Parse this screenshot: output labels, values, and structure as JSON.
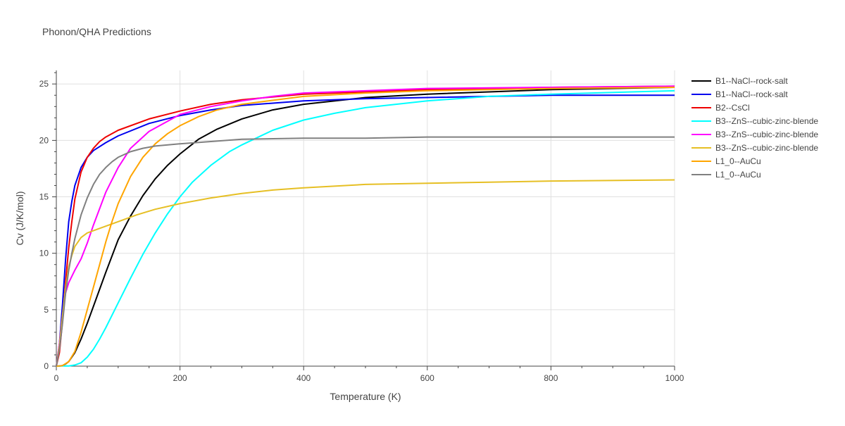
{
  "chart_data": {
    "type": "line",
    "title": "Phonon/QHA Predictions",
    "xlabel": "Temperature (K)",
    "ylabel": "Cv (J/K/mol)",
    "xlim": [
      0,
      1000
    ],
    "ylim": [
      0,
      26.2
    ],
    "xticks": [
      0,
      200,
      400,
      600,
      800,
      1000
    ],
    "yticks": [
      0,
      5,
      10,
      15,
      20,
      25
    ],
    "grid": true,
    "legend_position": "right",
    "series": [
      {
        "name": "B1--NaCl--rock-salt",
        "color": "#000000",
        "x": [
          0,
          5,
          10,
          15,
          20,
          30,
          40,
          50,
          60,
          80,
          100,
          120,
          140,
          160,
          180,
          200,
          230,
          260,
          300,
          350,
          400,
          500,
          600,
          700,
          800,
          1000
        ],
        "y": [
          0,
          0.01,
          0.05,
          0.2,
          0.4,
          1.2,
          2.4,
          3.8,
          5.3,
          8.3,
          11.2,
          13.3,
          15.1,
          16.6,
          17.8,
          18.8,
          20.1,
          21.0,
          21.9,
          22.7,
          23.2,
          23.8,
          24.1,
          24.3,
          24.5,
          24.7
        ]
      },
      {
        "name": "B1--NaCl--rock-salt",
        "color": "#0000ee",
        "x": [
          0,
          5,
          10,
          15,
          20,
          25,
          30,
          40,
          50,
          60,
          80,
          100,
          150,
          200,
          250,
          300,
          400,
          500,
          600,
          800,
          1000
        ],
        "y": [
          0,
          2.0,
          5.5,
          9.5,
          12.8,
          14.6,
          16.0,
          17.6,
          18.5,
          19.1,
          19.8,
          20.4,
          21.5,
          22.2,
          22.7,
          23.1,
          23.5,
          23.7,
          23.8,
          24.0,
          24.0
        ]
      },
      {
        "name": "B2--CsCl",
        "color": "#ee0000",
        "x": [
          0,
          5,
          10,
          15,
          20,
          25,
          30,
          40,
          50,
          60,
          70,
          80,
          100,
          150,
          200,
          250,
          300,
          400,
          500,
          600,
          800,
          1000
        ],
        "y": [
          0,
          1.2,
          4.0,
          7.5,
          10.5,
          12.8,
          14.8,
          17.2,
          18.5,
          19.3,
          19.9,
          20.3,
          20.9,
          21.9,
          22.6,
          23.2,
          23.6,
          24.1,
          24.3,
          24.5,
          24.7,
          24.8
        ]
      },
      {
        "name": "B3--ZnS--cubic-zinc-blende",
        "color": "#00ffff",
        "x": [
          0,
          10,
          20,
          30,
          40,
          50,
          60,
          70,
          80,
          100,
          120,
          140,
          160,
          180,
          200,
          220,
          250,
          280,
          300,
          350,
          400,
          450,
          500,
          600,
          700,
          800,
          1000
        ],
        "y": [
          0,
          0.01,
          0.02,
          0.1,
          0.3,
          0.8,
          1.5,
          2.4,
          3.4,
          5.6,
          7.8,
          9.9,
          11.8,
          13.5,
          15.0,
          16.3,
          17.8,
          19.0,
          19.6,
          20.9,
          21.8,
          22.4,
          22.9,
          23.5,
          23.9,
          24.1,
          24.4
        ]
      },
      {
        "name": "B3--ZnS--cubic-zinc-blende",
        "color": "#ff00ff",
        "x": [
          0,
          5,
          10,
          15,
          20,
          30,
          40,
          50,
          60,
          80,
          100,
          120,
          150,
          200,
          250,
          300,
          350,
          400,
          500,
          600,
          800,
          1000
        ],
        "y": [
          0,
          2.0,
          4.5,
          6.5,
          7.4,
          8.5,
          9.5,
          10.9,
          12.5,
          15.4,
          17.6,
          19.3,
          20.8,
          22.3,
          23.0,
          23.5,
          23.9,
          24.2,
          24.4,
          24.6,
          24.7,
          24.8
        ]
      },
      {
        "name": "B3--ZnS--cubic-zinc-blende",
        "color": "#e6bf24",
        "x": [
          0,
          5,
          10,
          15,
          20,
          25,
          30,
          40,
          50,
          60,
          80,
          100,
          130,
          160,
          200,
          250,
          300,
          350,
          400,
          500,
          600,
          700,
          800,
          1000
        ],
        "y": [
          0,
          1.8,
          4.5,
          7.0,
          8.8,
          9.8,
          10.6,
          11.4,
          11.8,
          12.0,
          12.4,
          12.8,
          13.4,
          13.9,
          14.4,
          14.9,
          15.3,
          15.6,
          15.8,
          16.1,
          16.2,
          16.3,
          16.4,
          16.5
        ]
      },
      {
        "name": "L1_0--AuCu",
        "color": "#ffa500",
        "x": [
          0,
          5,
          10,
          20,
          30,
          40,
          50,
          60,
          70,
          80,
          90,
          100,
          120,
          140,
          160,
          180,
          200,
          230,
          260,
          300,
          400,
          500,
          600,
          800,
          1000
        ],
        "y": [
          0,
          0.01,
          0.05,
          0.4,
          1.3,
          3.0,
          5.0,
          7.0,
          9.0,
          11.0,
          12.8,
          14.4,
          16.8,
          18.5,
          19.7,
          20.6,
          21.3,
          22.1,
          22.7,
          23.2,
          23.9,
          24.2,
          24.4,
          24.6,
          24.7
        ]
      },
      {
        "name": "L1_0--AuCu",
        "color": "#808080",
        "x": [
          0,
          5,
          10,
          15,
          20,
          25,
          30,
          40,
          50,
          60,
          70,
          80,
          90,
          100,
          120,
          140,
          160,
          200,
          250,
          300,
          400,
          500,
          600,
          800,
          1000
        ],
        "y": [
          0,
          1.5,
          3.8,
          6.5,
          8.5,
          10.0,
          11.3,
          13.4,
          14.9,
          16.1,
          17.0,
          17.6,
          18.1,
          18.5,
          19.0,
          19.3,
          19.5,
          19.7,
          19.9,
          20.1,
          20.2,
          20.2,
          20.3,
          20.3,
          20.3
        ]
      }
    ]
  }
}
